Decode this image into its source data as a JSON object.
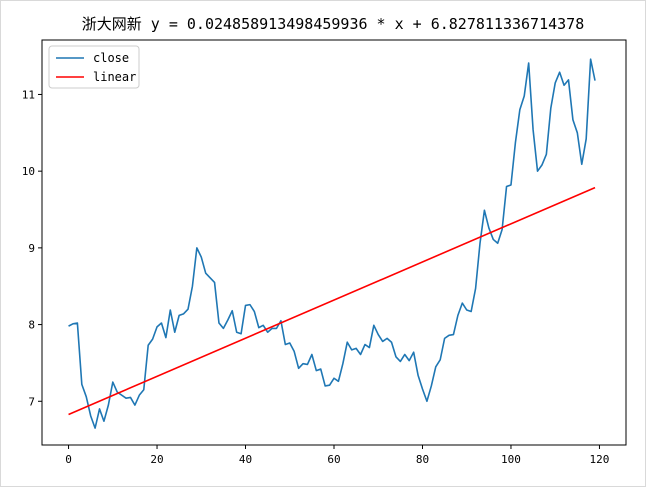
{
  "chart_data": {
    "type": "line",
    "title": "浙大网新 y = 0.024858913498459936 * x + 6.827811336714378",
    "xlabel": "",
    "ylabel": "",
    "xlim": [
      -6,
      126
    ],
    "ylim": [
      6.43,
      11.71
    ],
    "xticks": [
      0,
      20,
      40,
      60,
      80,
      100,
      120
    ],
    "yticks": [
      7,
      8,
      9,
      10,
      11
    ],
    "grid": false,
    "legend_position": "top-left",
    "series": [
      {
        "name": "close",
        "color": "#1f77b4",
        "values": [
          7.98,
          8.01,
          8.02,
          7.22,
          7.06,
          6.81,
          6.65,
          6.9,
          6.74,
          6.95,
          7.25,
          7.12,
          7.08,
          7.04,
          7.05,
          6.95,
          7.08,
          7.15,
          7.73,
          7.81,
          7.97,
          8.02,
          7.83,
          8.19,
          7.9,
          8.12,
          8.14,
          8.2,
          8.5,
          9.0,
          8.88,
          8.67,
          8.61,
          8.55,
          8.02,
          7.95,
          8.06,
          8.18,
          7.9,
          7.88,
          8.25,
          8.26,
          8.17,
          7.96,
          7.99,
          7.9,
          7.95,
          7.95,
          8.05,
          7.74,
          7.76,
          7.65,
          7.43,
          7.49,
          7.48,
          7.61,
          7.4,
          7.42,
          7.2,
          7.21,
          7.3,
          7.26,
          7.49,
          7.77,
          7.67,
          7.69,
          7.61,
          7.74,
          7.7,
          7.99,
          7.87,
          7.78,
          7.82,
          7.77,
          7.58,
          7.52,
          7.61,
          7.53,
          7.64,
          7.34,
          7.16,
          7.0,
          7.2,
          7.45,
          7.54,
          7.82,
          7.86,
          7.87,
          8.12,
          8.28,
          8.19,
          8.17,
          8.47,
          9.06,
          9.49,
          9.26,
          9.11,
          9.06,
          9.24,
          9.8,
          9.82,
          10.37,
          10.8,
          10.98,
          11.41,
          10.54,
          10.0,
          10.08,
          10.22,
          10.82,
          11.15,
          11.29,
          11.12,
          11.19,
          10.67,
          10.5,
          10.09,
          10.42,
          11.46,
          11.18
        ]
      },
      {
        "name": "linear",
        "color": "#ff0000",
        "slope": 0.024858913498459936,
        "intercept": 6.827811336714378,
        "x_range": [
          0,
          119
        ]
      }
    ]
  }
}
